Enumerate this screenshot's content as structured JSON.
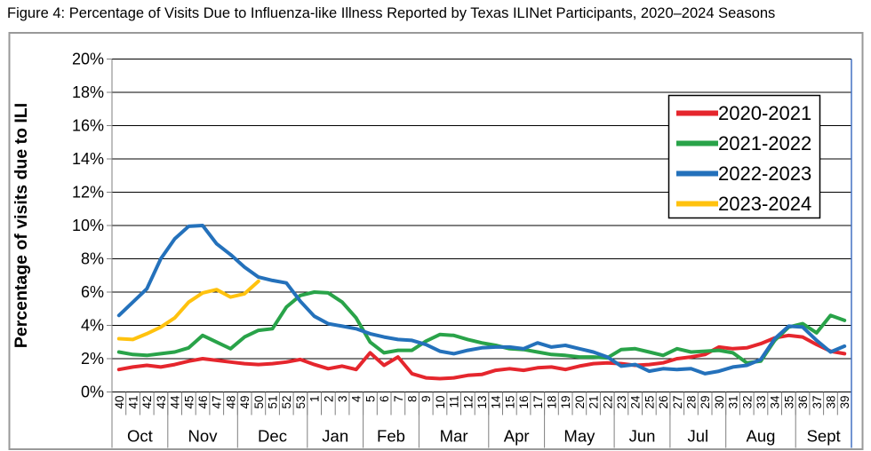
{
  "title": "Figure 4: Percentage of Visits Due to Influenza-like Illness Reported by Texas ILINet Participants, 2020–2024 Seasons",
  "colors": {
    "figure_border": "#999999",
    "plot_right_border": "#4472C4",
    "gridline": "#000000",
    "axis_gray": "#7F7F7F",
    "tick_label": "#000000"
  },
  "chart_data": {
    "type": "line",
    "title": "Figure 4: Percentage of Visits Due to Influenza-like Illness Reported by Texas ILINet Participants, 2020–2024 Seasons",
    "ylabel": "Percentage of visits due to ILI",
    "xlabel": "",
    "ylim": [
      0,
      20
    ],
    "grid": true,
    "legend_position": "top-right",
    "ytick_values": [
      0,
      2,
      4,
      6,
      8,
      10,
      12,
      14,
      16,
      18,
      20
    ],
    "ytick_labels": [
      "0%",
      "2%",
      "4%",
      "6%",
      "8%",
      "10%",
      "12%",
      "14%",
      "16%",
      "18%",
      "20%"
    ],
    "x_week_labels": [
      "40",
      "41",
      "42",
      "43",
      "44",
      "45",
      "46",
      "47",
      "48",
      "49",
      "50",
      "51",
      "52",
      "53",
      "1",
      "2",
      "3",
      "4",
      "5",
      "6",
      "7",
      "8",
      "9",
      "10",
      "11",
      "12",
      "13",
      "14",
      "15",
      "16",
      "17",
      "18",
      "19",
      "20",
      "21",
      "22",
      "23",
      "24",
      "25",
      "26",
      "27",
      "28",
      "29",
      "30",
      "31",
      "32",
      "33",
      "34",
      "35",
      "36",
      "37",
      "38",
      "39"
    ],
    "months": [
      {
        "label": "Oct",
        "weeks": 4
      },
      {
        "label": "Nov",
        "weeks": 5
      },
      {
        "label": "Dec",
        "weeks": 5
      },
      {
        "label": "Jan",
        "weeks": 4
      },
      {
        "label": "Feb",
        "weeks": 4
      },
      {
        "label": "Mar",
        "weeks": 5
      },
      {
        "label": "Apr",
        "weeks": 4
      },
      {
        "label": "May",
        "weeks": 5
      },
      {
        "label": "Jun",
        "weeks": 4
      },
      {
        "label": "Jul",
        "weeks": 4
      },
      {
        "label": "Aug",
        "weeks": 5
      },
      {
        "label": "Sept",
        "weeks": 4
      }
    ],
    "series": [
      {
        "name": "2020-2021",
        "color": "#E5262D",
        "values": [
          1.35,
          1.5,
          1.6,
          1.5,
          1.65,
          1.85,
          2.0,
          1.9,
          1.8,
          1.7,
          1.65,
          1.7,
          1.8,
          1.95,
          1.65,
          1.4,
          1.55,
          1.35,
          2.35,
          1.6,
          2.1,
          1.1,
          0.85,
          0.8,
          0.85,
          1.0,
          1.05,
          1.3,
          1.4,
          1.3,
          1.45,
          1.5,
          1.35,
          1.55,
          1.7,
          1.75,
          1.7,
          1.6,
          1.65,
          1.75,
          2.0,
          2.1,
          2.25,
          2.7,
          2.6,
          2.65,
          2.9,
          3.25,
          3.4,
          3.3,
          2.85,
          2.45,
          2.3
        ]
      },
      {
        "name": "2021-2022",
        "color": "#29A349",
        "values": [
          2.4,
          2.25,
          2.2,
          2.3,
          2.4,
          2.65,
          3.4,
          3.0,
          2.6,
          3.3,
          3.7,
          3.8,
          5.1,
          5.8,
          6.0,
          5.95,
          5.4,
          4.45,
          3.0,
          2.35,
          2.5,
          2.5,
          3.05,
          3.45,
          3.4,
          3.15,
          2.95,
          2.8,
          2.6,
          2.55,
          2.4,
          2.25,
          2.2,
          2.1,
          2.1,
          2.05,
          2.55,
          2.6,
          2.4,
          2.2,
          2.6,
          2.4,
          2.45,
          2.5,
          2.35,
          1.75,
          1.85,
          3.1,
          3.9,
          4.1,
          3.55,
          4.6,
          4.3
        ]
      },
      {
        "name": "2022-2023",
        "color": "#2471BB",
        "values": [
          4.6,
          5.4,
          6.2,
          8.0,
          9.2,
          9.95,
          10.0,
          8.9,
          8.25,
          7.5,
          6.9,
          6.7,
          6.55,
          5.45,
          4.55,
          4.1,
          3.95,
          3.8,
          3.5,
          3.3,
          3.15,
          3.1,
          2.85,
          2.45,
          2.3,
          2.5,
          2.65,
          2.7,
          2.7,
          2.6,
          2.95,
          2.7,
          2.8,
          2.6,
          2.4,
          2.1,
          1.55,
          1.65,
          1.25,
          1.4,
          1.35,
          1.4,
          1.1,
          1.25,
          1.5,
          1.6,
          1.95,
          3.2,
          3.95,
          3.9,
          3.1,
          2.4,
          2.75
        ]
      },
      {
        "name": "2023-2024",
        "color": "#FFC20E",
        "values": [
          3.2,
          3.15,
          3.5,
          3.9,
          4.45,
          5.4,
          5.95,
          6.15,
          5.7,
          5.9,
          6.65,
          null,
          null,
          null,
          null,
          null,
          null,
          null,
          null,
          null,
          null,
          null,
          null,
          null,
          null,
          null,
          null,
          null,
          null,
          null,
          null,
          null,
          null,
          null,
          null,
          null,
          null,
          null,
          null,
          null,
          null,
          null,
          null,
          null,
          null,
          null,
          null,
          null,
          null,
          null,
          null,
          null,
          null
        ]
      }
    ]
  }
}
